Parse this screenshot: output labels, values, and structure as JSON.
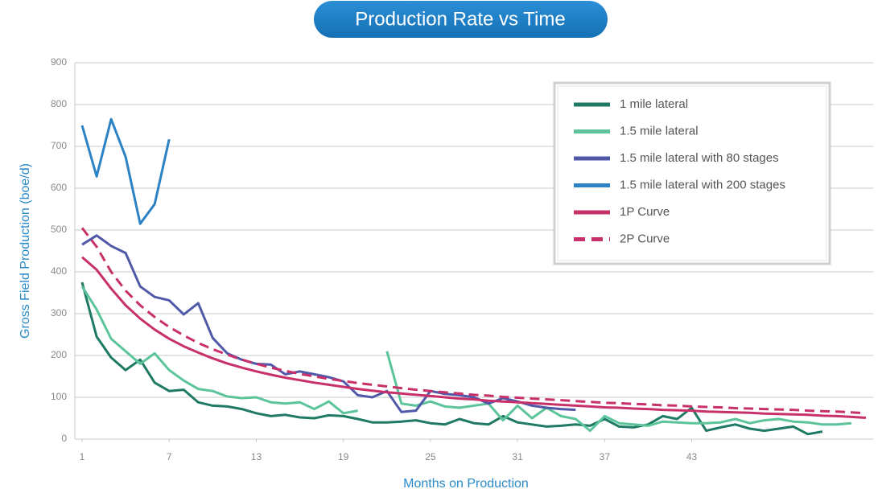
{
  "chart_data": {
    "type": "line",
    "title": "Production Rate vs Time",
    "x_label": "Months on Production",
    "y_label": "Gross Field Production (boe/d)",
    "x": [
      1,
      2,
      3,
      4,
      5,
      6,
      7,
      8,
      9,
      10,
      11,
      12,
      13,
      14,
      15,
      16,
      17,
      18,
      19,
      20,
      21,
      22,
      23,
      24,
      25,
      26,
      27,
      28,
      29,
      30,
      31,
      32,
      33,
      34,
      35,
      36,
      37,
      38,
      39,
      40,
      41,
      42,
      43,
      44,
      45,
      46,
      47,
      48,
      49,
      50,
      51,
      52,
      53,
      54,
      55
    ],
    "xlim": [
      0.5,
      55.5
    ],
    "xticks": [
      1,
      7,
      13,
      19,
      25,
      31,
      37,
      43
    ],
    "ylim": [
      0,
      900
    ],
    "yticks": [
      0,
      100,
      200,
      300,
      400,
      500,
      600,
      700,
      800,
      900
    ],
    "grid": true,
    "legend": "upper-right",
    "series": [
      {
        "name": "1 mile lateral",
        "color": "#1e7a62",
        "dashed": false,
        "values": [
          375,
          245,
          195,
          165,
          190,
          135,
          115,
          118,
          88,
          80,
          78,
          72,
          62,
          55,
          58,
          52,
          50,
          57,
          55,
          48,
          40,
          40,
          42,
          45,
          38,
          35,
          48,
          38,
          35,
          55,
          40,
          35,
          30,
          32,
          35,
          32,
          48,
          30,
          28,
          35,
          55,
          48,
          75,
          20,
          28,
          35,
          25,
          20,
          25,
          30,
          12,
          18,
          null,
          null,
          null
        ]
      },
      {
        "name": "1.5 mile lateral",
        "color": "#5cc49a",
        "dashed": false,
        "values": [
          365,
          310,
          240,
          210,
          180,
          205,
          165,
          140,
          120,
          115,
          102,
          98,
          100,
          88,
          85,
          88,
          72,
          90,
          62,
          68,
          null,
          210,
          85,
          80,
          90,
          78,
          75,
          80,
          85,
          45,
          80,
          50,
          75,
          55,
          48,
          20,
          55,
          38,
          35,
          32,
          42,
          40,
          38,
          38,
          40,
          48,
          38,
          45,
          48,
          42,
          40,
          35,
          35,
          38,
          null
        ]
      },
      {
        "name": "1.5 mile lateral with 80 stages",
        "color": "#5058a8",
        "dashed": false,
        "values": [
          465,
          487,
          462,
          445,
          365,
          340,
          332,
          298,
          325,
          242,
          205,
          190,
          180,
          178,
          155,
          162,
          155,
          148,
          138,
          105,
          100,
          115,
          65,
          68,
          115,
          108,
          105,
          100,
          85,
          98,
          90,
          80,
          75,
          72,
          70,
          null,
          null,
          null,
          null,
          null,
          null,
          null,
          null,
          null,
          null,
          null,
          null,
          null,
          null,
          null,
          null,
          null,
          null,
          null,
          null
        ]
      },
      {
        "name": "1.5 mile lateral with 200 stages",
        "color": "#2b82c4",
        "dashed": false,
        "values": [
          750,
          628,
          765,
          675,
          515,
          562,
          717,
          null,
          null,
          null,
          null,
          null,
          null,
          null,
          null,
          null,
          null,
          null,
          null,
          null,
          null,
          null,
          null,
          null,
          null,
          null,
          null,
          null,
          null,
          null,
          null,
          null,
          null,
          null,
          null,
          null,
          null,
          null,
          null,
          null,
          null,
          null,
          null,
          null,
          null,
          null,
          null,
          null,
          null,
          null,
          null,
          null,
          null,
          null,
          null
        ]
      },
      {
        "name": "1P Curve",
        "color": "#c8306a",
        "dashed": false,
        "values": [
          435,
          405,
          360,
          320,
          288,
          262,
          240,
          222,
          207,
          193,
          181,
          171,
          162,
          154,
          147,
          141,
          135,
          130,
          125,
          120,
          116,
          112,
          109,
          106,
          103,
          100,
          97,
          95,
          92,
          90,
          88,
          86,
          84,
          82,
          80,
          78,
          76,
          75,
          73,
          72,
          70,
          69,
          68,
          66,
          65,
          64,
          63,
          61,
          60,
          59,
          58,
          56,
          55,
          53,
          51
        ]
      },
      {
        "name": "2P Curve",
        "color": "#c8306a",
        "dashed": true,
        "values": [
          505,
          460,
          400,
          355,
          320,
          292,
          268,
          248,
          230,
          215,
          202,
          190,
          180,
          171,
          163,
          156,
          150,
          144,
          139,
          134,
          130,
          126,
          122,
          118,
          115,
          112,
          109,
          106,
          104,
          101,
          99,
          97,
          95,
          93,
          91,
          89,
          87,
          86,
          84,
          83,
          81,
          80,
          78,
          77,
          76,
          74,
          73,
          72,
          71,
          70,
          68,
          67,
          66,
          64,
          62
        ]
      }
    ]
  }
}
